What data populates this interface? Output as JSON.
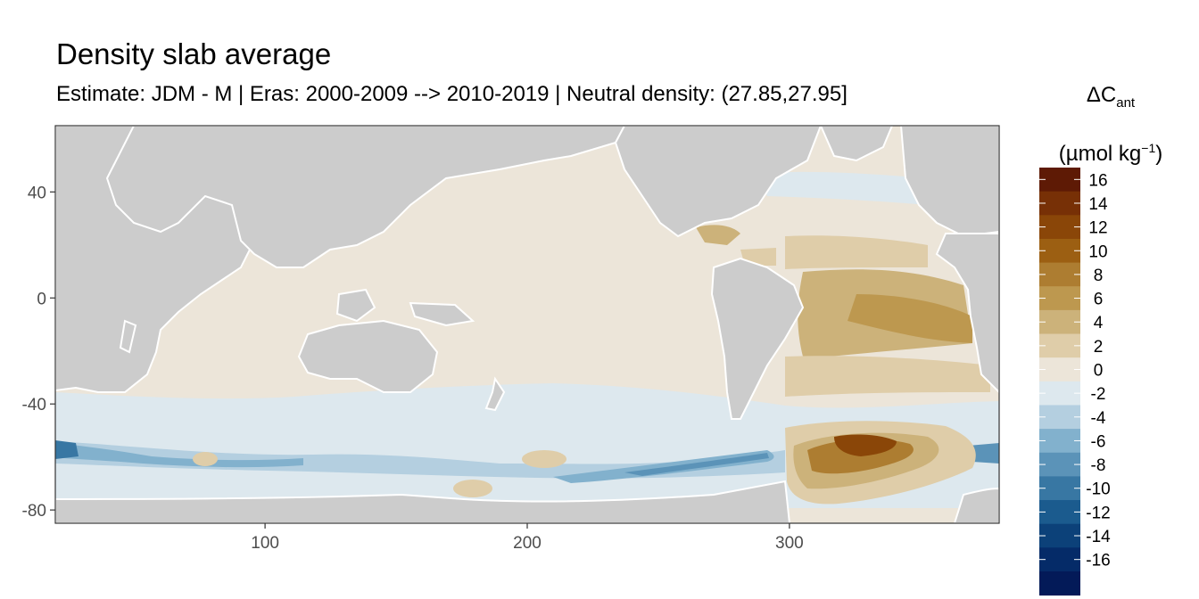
{
  "title": "Density slab average",
  "subtitle": "Estimate: JDM - M | Eras: 2000-2009 --> 2010-2019 | Neutral density: (27.85,27.95]",
  "legend": {
    "title_symbol": "ΔC",
    "title_sub": "ant",
    "unit_open": "(µmol kg",
    "unit_sup": "−1",
    "unit_close": ")",
    "labels": [
      "16",
      "14",
      "12",
      "10",
      "8",
      "6",
      "4",
      "2",
      "0",
      "-2",
      "-4",
      "-6",
      "-8",
      "-10",
      "-12",
      "-14",
      "-16"
    ],
    "colors": [
      "#5e1a05",
      "#773006",
      "#8a4608",
      "#9c5f12",
      "#ad7d31",
      "#bd984f",
      "#ccb27a",
      "#dfcda9",
      "#ece5d9",
      "#dde8ee",
      "#b4cfe0",
      "#82b1cd",
      "#5b93b8",
      "#3877a3",
      "#1b5b8e",
      "#0c4179",
      "#052b68",
      "#031a58"
    ]
  },
  "chart_data": {
    "type": "heatmap",
    "title": "Density slab average",
    "subtitle": "Estimate: JDM - M | Eras: 2000-2009 --> 2010-2019 | Neutral density: (27.85,27.95]",
    "xlabel": "",
    "ylabel": "",
    "xlim": [
      20,
      380
    ],
    "ylim": [
      -85,
      65
    ],
    "x_ticks": [
      100,
      200,
      300
    ],
    "y_ticks": [
      40,
      0,
      -40,
      -80
    ],
    "colorbar_range": [
      -17,
      17
    ],
    "colorbar_step": 2,
    "land_color": "#cccccc",
    "grid": false
  }
}
